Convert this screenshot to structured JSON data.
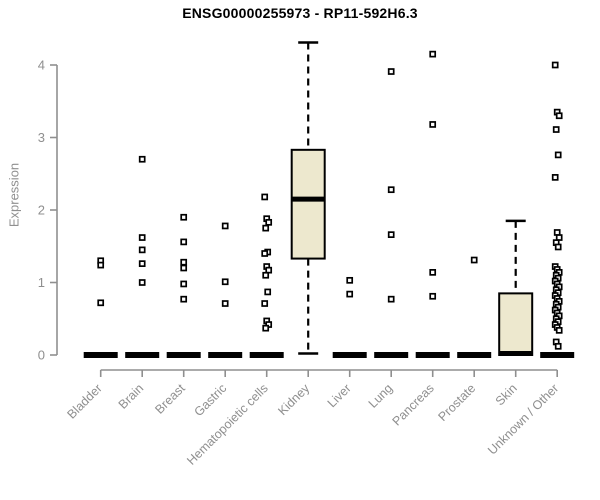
{
  "chart_data": {
    "type": "boxplot",
    "title": "ENSG00000255973 - RP11-592H6.3",
    "ylabel": "Expression",
    "yticks": [
      0,
      1,
      2,
      3,
      4
    ],
    "ylim": [
      0,
      4.4
    ],
    "grid": false,
    "legend": "none",
    "categories": [
      "Bladder",
      "Brain",
      "Breast",
      "Gastric",
      "Hematopoietic cells",
      "Kidney",
      "Liver",
      "Lung",
      "Pancreas",
      "Prostate",
      "Skin",
      "Unknown / Other"
    ],
    "boxes": [
      {
        "category": "Bladder",
        "q1": 0,
        "median": 0,
        "q3": 0,
        "whisker_low": 0,
        "whisker_high": 0
      },
      {
        "category": "Brain",
        "q1": 0,
        "median": 0,
        "q3": 0,
        "whisker_low": 0,
        "whisker_high": 0
      },
      {
        "category": "Breast",
        "q1": 0,
        "median": 0,
        "q3": 0,
        "whisker_low": 0,
        "whisker_high": 0
      },
      {
        "category": "Gastric",
        "q1": 0,
        "median": 0,
        "q3": 0,
        "whisker_low": 0,
        "whisker_high": 0
      },
      {
        "category": "Hematopoietic cells",
        "q1": 0,
        "median": 0,
        "q3": 0,
        "whisker_low": 0,
        "whisker_high": 0
      },
      {
        "category": "Kidney",
        "q1": 1.33,
        "median": 2.15,
        "q3": 2.83,
        "whisker_low": 0.02,
        "whisker_high": 4.31
      },
      {
        "category": "Liver",
        "q1": 0,
        "median": 0,
        "q3": 0,
        "whisker_low": 0,
        "whisker_high": 0
      },
      {
        "category": "Lung",
        "q1": 0,
        "median": 0,
        "q3": 0,
        "whisker_low": 0,
        "whisker_high": 0
      },
      {
        "category": "Pancreas",
        "q1": 0,
        "median": 0,
        "q3": 0,
        "whisker_low": 0,
        "whisker_high": 0
      },
      {
        "category": "Prostate",
        "q1": 0,
        "median": 0,
        "q3": 0,
        "whisker_low": 0,
        "whisker_high": 0
      },
      {
        "category": "Skin",
        "q1": 0,
        "median": 0.02,
        "q3": 0.85,
        "whisker_low": 0,
        "whisker_high": 1.85
      },
      {
        "category": "Unknown / Other",
        "q1": 0,
        "median": 0,
        "q3": 0,
        "whisker_low": 0,
        "whisker_high": 0
      }
    ],
    "outlier_points": [
      [
        1.3,
        1.24,
        0.72
      ],
      [
        2.7,
        1.62,
        1.45,
        1.26,
        1.0
      ],
      [
        1.9,
        1.56,
        1.28,
        1.2,
        0.98,
        0.77
      ],
      [
        1.78,
        1.01,
        0.71
      ],
      [
        2.18,
        1.88,
        1.83,
        1.75,
        1.42,
        1.4,
        1.22,
        1.17,
        1.1,
        0.87,
        0.71,
        0.47,
        0.42,
        0.37
      ],
      [],
      [
        1.03,
        0.84
      ],
      [
        3.91,
        2.28,
        1.66,
        0.77
      ],
      [
        4.15,
        3.18,
        1.14,
        0.81
      ],
      [
        1.31
      ],
      [],
      [
        4.0,
        3.35,
        3.3,
        3.11,
        2.76,
        2.45,
        1.69,
        1.62,
        1.55,
        1.49,
        1.22,
        1.18,
        1.14,
        1.1,
        1.06,
        1.02,
        0.98,
        0.94,
        0.9,
        0.86,
        0.82,
        0.78,
        0.74,
        0.7,
        0.66,
        0.62,
        0.58,
        0.54,
        0.5,
        0.46,
        0.42,
        0.38,
        0.34,
        0.18,
        0.12
      ]
    ],
    "colors": {
      "box_fill": "#ede8ce",
      "box_border": "#000000",
      "axis": "#8f8f8f",
      "text": "#8f8f8f",
      "title": "#000000",
      "point": "#000000"
    }
  }
}
